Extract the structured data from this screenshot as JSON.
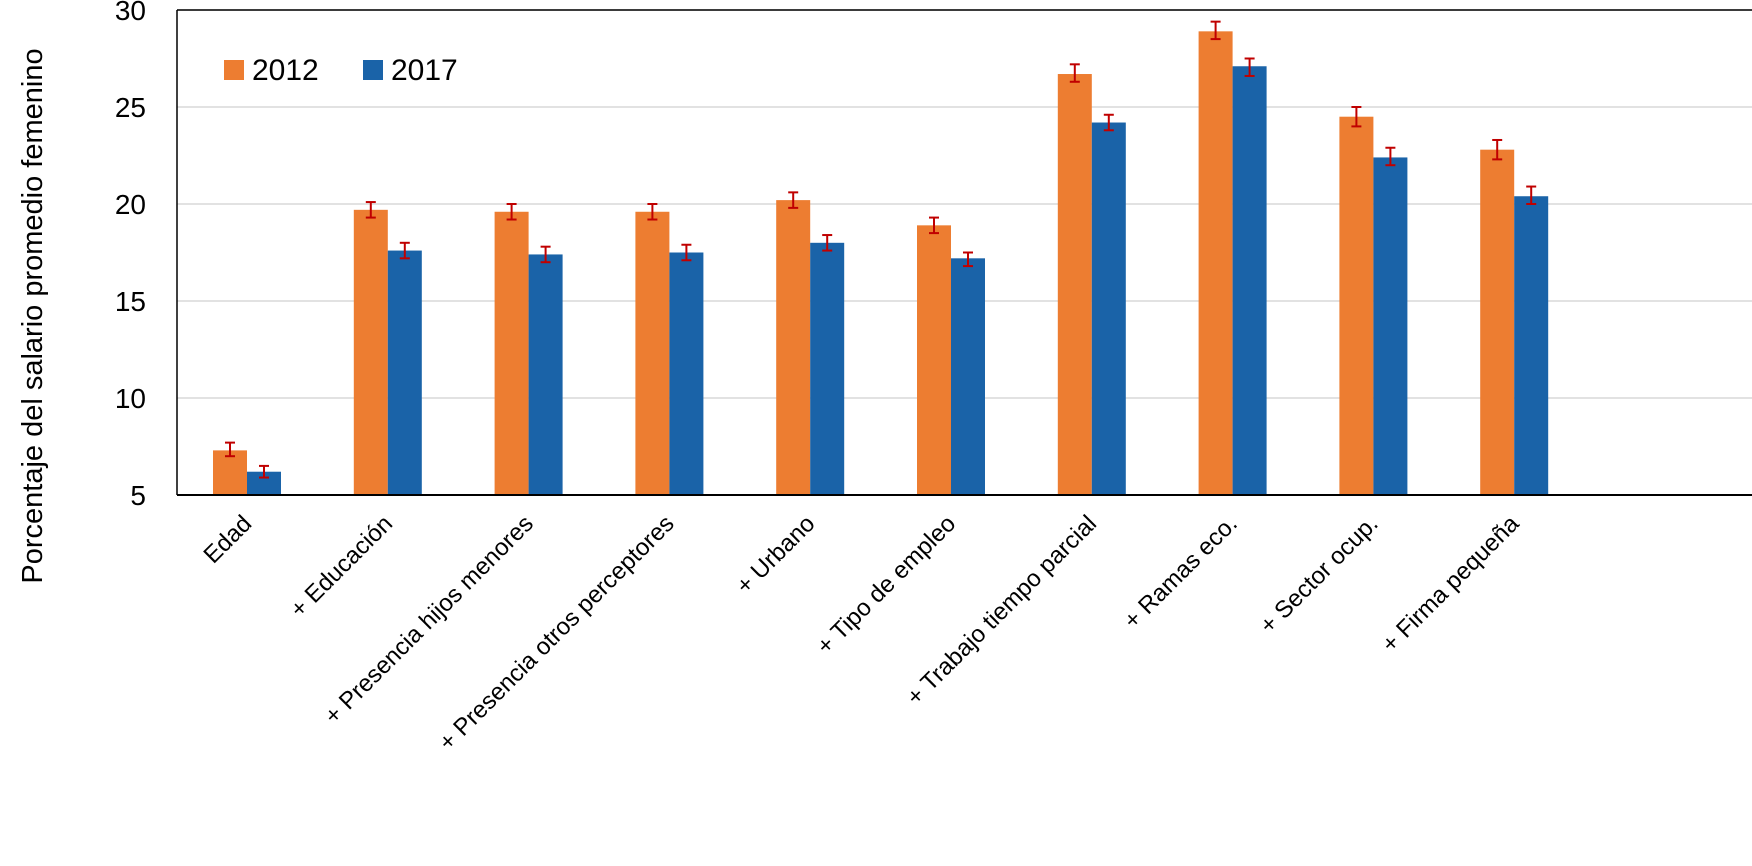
{
  "chart_data": {
    "type": "bar",
    "ylabel": "Porcentaje del salario promedio femenino",
    "xlabel": "",
    "ylim": [
      5,
      30
    ],
    "yticks": [
      5,
      10,
      15,
      20,
      25,
      30
    ],
    "grid": true,
    "legend_position": "top-left",
    "categories": [
      "Edad",
      "+ Educación",
      "+ Presencia hijos menores",
      "+ Presencia otros perceptores",
      "+ Urbano",
      "+ Tipo de empleo",
      "+ Trabajo tiempo parcial",
      "+ Ramas eco.",
      "+ Sector ocup.",
      "+ Firma pequeña"
    ],
    "series": [
      {
        "name": "2012",
        "color": "#ED7D31",
        "values": [
          7.3,
          19.7,
          19.6,
          19.6,
          20.2,
          18.9,
          26.7,
          28.9,
          24.5,
          22.8
        ],
        "err_low": [
          7.0,
          19.3,
          19.2,
          19.2,
          19.8,
          18.5,
          26.3,
          28.5,
          24.0,
          22.3
        ],
        "err_high": [
          7.7,
          20.1,
          20.0,
          20.0,
          20.6,
          19.3,
          27.2,
          29.4,
          25.0,
          23.3
        ]
      },
      {
        "name": "2017",
        "color": "#1A63A8",
        "values": [
          6.2,
          17.6,
          17.4,
          17.5,
          18.0,
          17.2,
          24.2,
          27.1,
          22.4,
          20.4
        ],
        "err_low": [
          5.9,
          17.2,
          17.0,
          17.1,
          17.6,
          16.8,
          23.8,
          26.6,
          22.0,
          20.0
        ],
        "err_high": [
          6.5,
          18.0,
          17.8,
          17.9,
          18.4,
          17.5,
          24.6,
          27.5,
          22.9,
          20.9
        ]
      }
    ],
    "error_bar_color": "#C00000"
  }
}
